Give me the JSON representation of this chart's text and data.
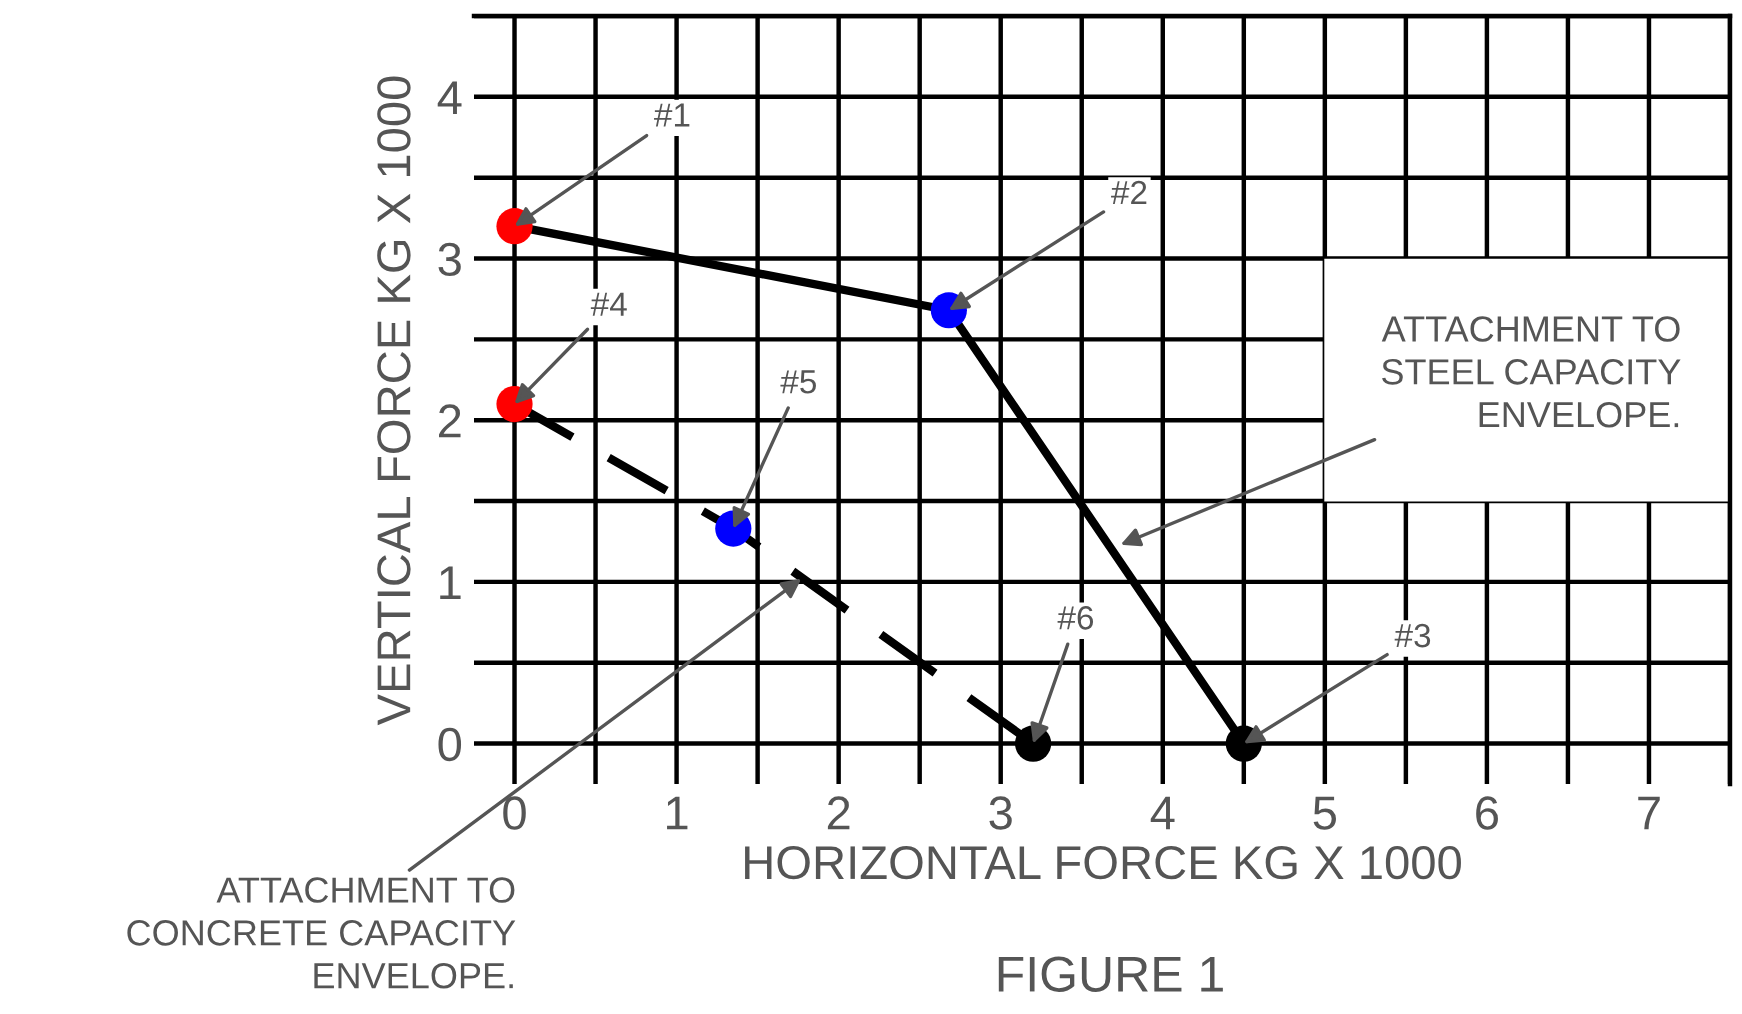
{
  "chart_data": {
    "type": "line",
    "title": "FIGURE 1",
    "xlabel": "HORIZONTAL FORCE KG X 1000",
    "ylabel": "VERTICAL FORCE KG X 1000",
    "xlim": [
      -0.25,
      7.5
    ],
    "ylim": [
      -0.25,
      4.5
    ],
    "xticks": [
      0,
      {
        "value": 0.5,
        "label": null
      },
      1,
      {
        "value": 1.5,
        "label": null
      },
      2,
      {
        "value": 2.5,
        "label": null
      },
      3,
      {
        "value": 3.5,
        "label": null
      },
      4,
      {
        "value": 4.5,
        "label": null
      },
      5,
      {
        "value": 5.5,
        "label": null
      },
      6,
      {
        "value": 6.5,
        "label": null
      },
      7,
      {
        "value": 7.5,
        "label": null
      }
    ],
    "yticks": [
      0,
      {
        "value": 0.5,
        "label": null
      },
      1,
      {
        "value": 1.5,
        "label": null
      },
      2,
      {
        "value": 2.5,
        "label": null
      },
      3,
      {
        "value": 3.5,
        "label": null
      },
      4,
      {
        "value": 4.5,
        "label": null
      }
    ],
    "grid": true,
    "marker": "circle",
    "series": [
      {
        "color": "#000000",
        "line_style": "solid",
        "x": [
          0,
          2.68,
          4.5
        ],
        "values": [
          3.2,
          2.68,
          0
        ],
        "colors": [
          "#ff0000",
          "#0000ff",
          "#000000"
        ]
      },
      {
        "color": "#000000",
        "line_style": "dashed",
        "x": [
          0,
          1.35,
          3.2
        ],
        "values": [
          2.1,
          1.33,
          0
        ],
        "colors": [
          "#ff0000",
          "#0000ff",
          "#000000"
        ]
      }
    ],
    "annotations": [
      {
        "text": "#1",
        "x": 0,
        "y": 3.2
      },
      {
        "text": "#2",
        "x": 2.68,
        "y": 2.68
      },
      {
        "text": "#3",
        "x": 4.5,
        "y": 0
      },
      {
        "text": "#4",
        "x": 0,
        "y": 2.1
      },
      {
        "text": "#5",
        "x": 1.35,
        "y": 1.33
      },
      {
        "text": "#6",
        "x": 3.2,
        "y": 0
      },
      {
        "text": "ATTACHMENT TO\nSTEEL CAPACITY\nENVELOPE.",
        "x": 3.74,
        "y": 1.23
      },
      {
        "text": "ATTACHMENT TO\nCONCRETE CAPACITY\nENVELOPE.",
        "x": 1.77,
        "y": 1.02
      }
    ]
  }
}
